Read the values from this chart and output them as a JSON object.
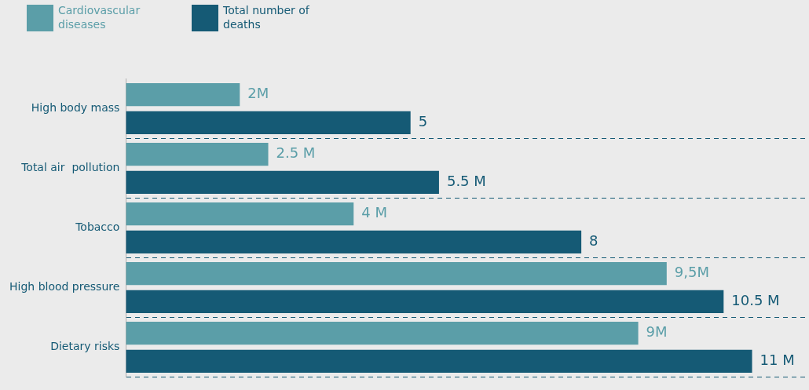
{
  "chart_data": {
    "type": "bar",
    "orientation": "horizontal",
    "categories": [
      "High body mass",
      "Total air  pollution",
      "Tobacco",
      "High blood pressure",
      "Dietary risks"
    ],
    "series": [
      {
        "name": "Cardiovascular diseases",
        "color": "#5b9ea8",
        "values": [
          2,
          2.5,
          4,
          9.5,
          9
        ],
        "value_labels": [
          "2M",
          "2.5 M",
          "4 M",
          "9,5M",
          "9M"
        ]
      },
      {
        "name": "Total number of deaths",
        "color": "#155a75",
        "values": [
          5,
          5.5,
          8,
          10.5,
          11
        ],
        "value_labels": [
          "5",
          "5.5 M",
          "8",
          "10.5 M",
          "11 M"
        ]
      }
    ],
    "grid": "y",
    "legend": "top left"
  }
}
